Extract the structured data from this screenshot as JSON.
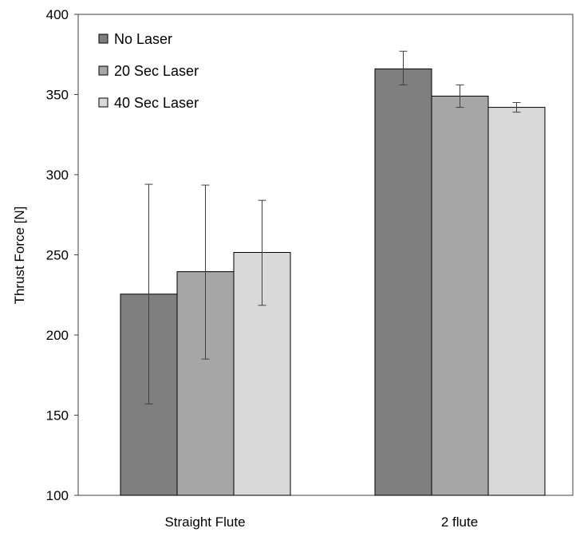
{
  "chart_data": {
    "type": "bar",
    "title": "",
    "xlabel": "",
    "ylabel": "Thrust Force [N]",
    "ylim": [
      100,
      400
    ],
    "yticks": [
      100,
      150,
      200,
      250,
      300,
      350,
      400
    ],
    "grid": false,
    "legend_position": "top-left",
    "categories": [
      "Straight Flute",
      "2 flute"
    ],
    "series": [
      {
        "name": "No Laser",
        "color": "#7f7f7f",
        "values": [
          225.5,
          366
        ],
        "error": [
          [
            157,
            294
          ],
          [
            356,
            377
          ]
        ]
      },
      {
        "name": "20 Sec Laser",
        "color": "#a6a6a6",
        "values": [
          239.5,
          349
        ],
        "error": [
          [
            185,
            293.5
          ],
          [
            342,
            356
          ]
        ]
      },
      {
        "name": "40 Sec Laser",
        "color": "#d9d9d9",
        "values": [
          251.5,
          342
        ],
        "error": [
          [
            218.5,
            284
          ],
          [
            339,
            345
          ]
        ]
      }
    ]
  }
}
